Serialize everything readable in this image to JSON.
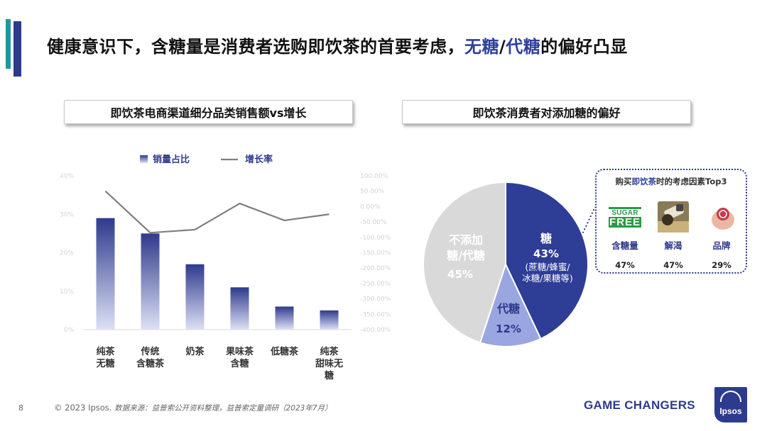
{
  "title": {
    "part1": "健康意识下，含糖量是消费者选购即饮茶的首要考虑，",
    "highlight1": "无糖",
    "sep": "/",
    "highlight2": "代糖",
    "part2": "的偏好凸显"
  },
  "left_panel_title": "即饮茶电商渠道细分品类销售额vs增长",
  "right_panel_title": "即饮茶消费者对添加糖的偏好",
  "colors": {
    "navy": "#2e3a8c",
    "teal": "#1a9aa0",
    "pie_sugar": "#2e3d96",
    "pie_substitute": "#99a6e0",
    "pie_none": "#d9d9d9",
    "line": "#7f7f7f"
  },
  "chart_data": [
    {
      "type": "bar",
      "legend_position": "top",
      "categories": [
        [
          "纯茶",
          "无糖"
        ],
        [
          "传统",
          "含糖茶"
        ],
        [
          "奶茶"
        ],
        [
          "果味茶",
          "含糖"
        ],
        [
          "低糖茶"
        ],
        [
          "纯茶",
          "甜味无",
          "糖"
        ]
      ],
      "series": [
        {
          "name": "销量占比",
          "type": "bar",
          "axis": "left",
          "values": [
            29,
            25,
            17,
            11,
            6,
            5
          ]
        },
        {
          "name": "增长率",
          "type": "line",
          "axis": "right",
          "values": [
            50,
            -85,
            -75,
            10,
            -45,
            -25
          ]
        }
      ],
      "y_left": {
        "ticks": [
          "0%",
          "10%",
          "20%",
          "30%",
          "40%"
        ],
        "ylim": [
          0,
          40
        ]
      },
      "y_right": {
        "ticks": [
          "100.00%",
          "50.00%",
          "0.00%",
          "-50.00%",
          "-100.00%",
          "-150.00%",
          "-200.00%",
          "-250.00%",
          "-300.00%",
          "-350.00%",
          "-400.00%"
        ],
        "ylim": [
          -400,
          100
        ]
      },
      "grid": false
    },
    {
      "type": "pie",
      "slices": [
        {
          "label": "糖",
          "value": 43,
          "pct_label": "43%",
          "note": [
            "(蔗糖/蜂蜜/",
            "冰糖/果糖等)"
          ],
          "color": "#2e3d96"
        },
        {
          "label": "代糖",
          "value": 12,
          "pct_label": "12%",
          "color": "#99a6e0"
        },
        {
          "label": [
            "不添加",
            "糖/代糖"
          ],
          "value": 45,
          "pct_label": "45%",
          "color": "#d9d9d9"
        }
      ]
    }
  ],
  "callout": {
    "title_pre": "购买",
    "title_hl": "即饮茶",
    "title_post": "时的考虑因素Top3",
    "factors": [
      {
        "label": "含糖量",
        "value": "47%",
        "icon": "sugar-free-logo"
      },
      {
        "label": "解渴",
        "value": "47%",
        "icon": "drinking-photo"
      },
      {
        "label": "品牌",
        "value": "29%",
        "icon": "brand-badge-photo"
      }
    ],
    "sugar_free_line1": "SUGAR",
    "sugar_free_line2": "FREE"
  },
  "footer": {
    "page_number": "8",
    "copyright": "© 2023 Ipsos.",
    "source": "数据来源：益普索公开资料整理，益普索定量调研（2023年7月）",
    "tagline": "GAME CHANGERS",
    "logo_text": "Ipsos"
  }
}
